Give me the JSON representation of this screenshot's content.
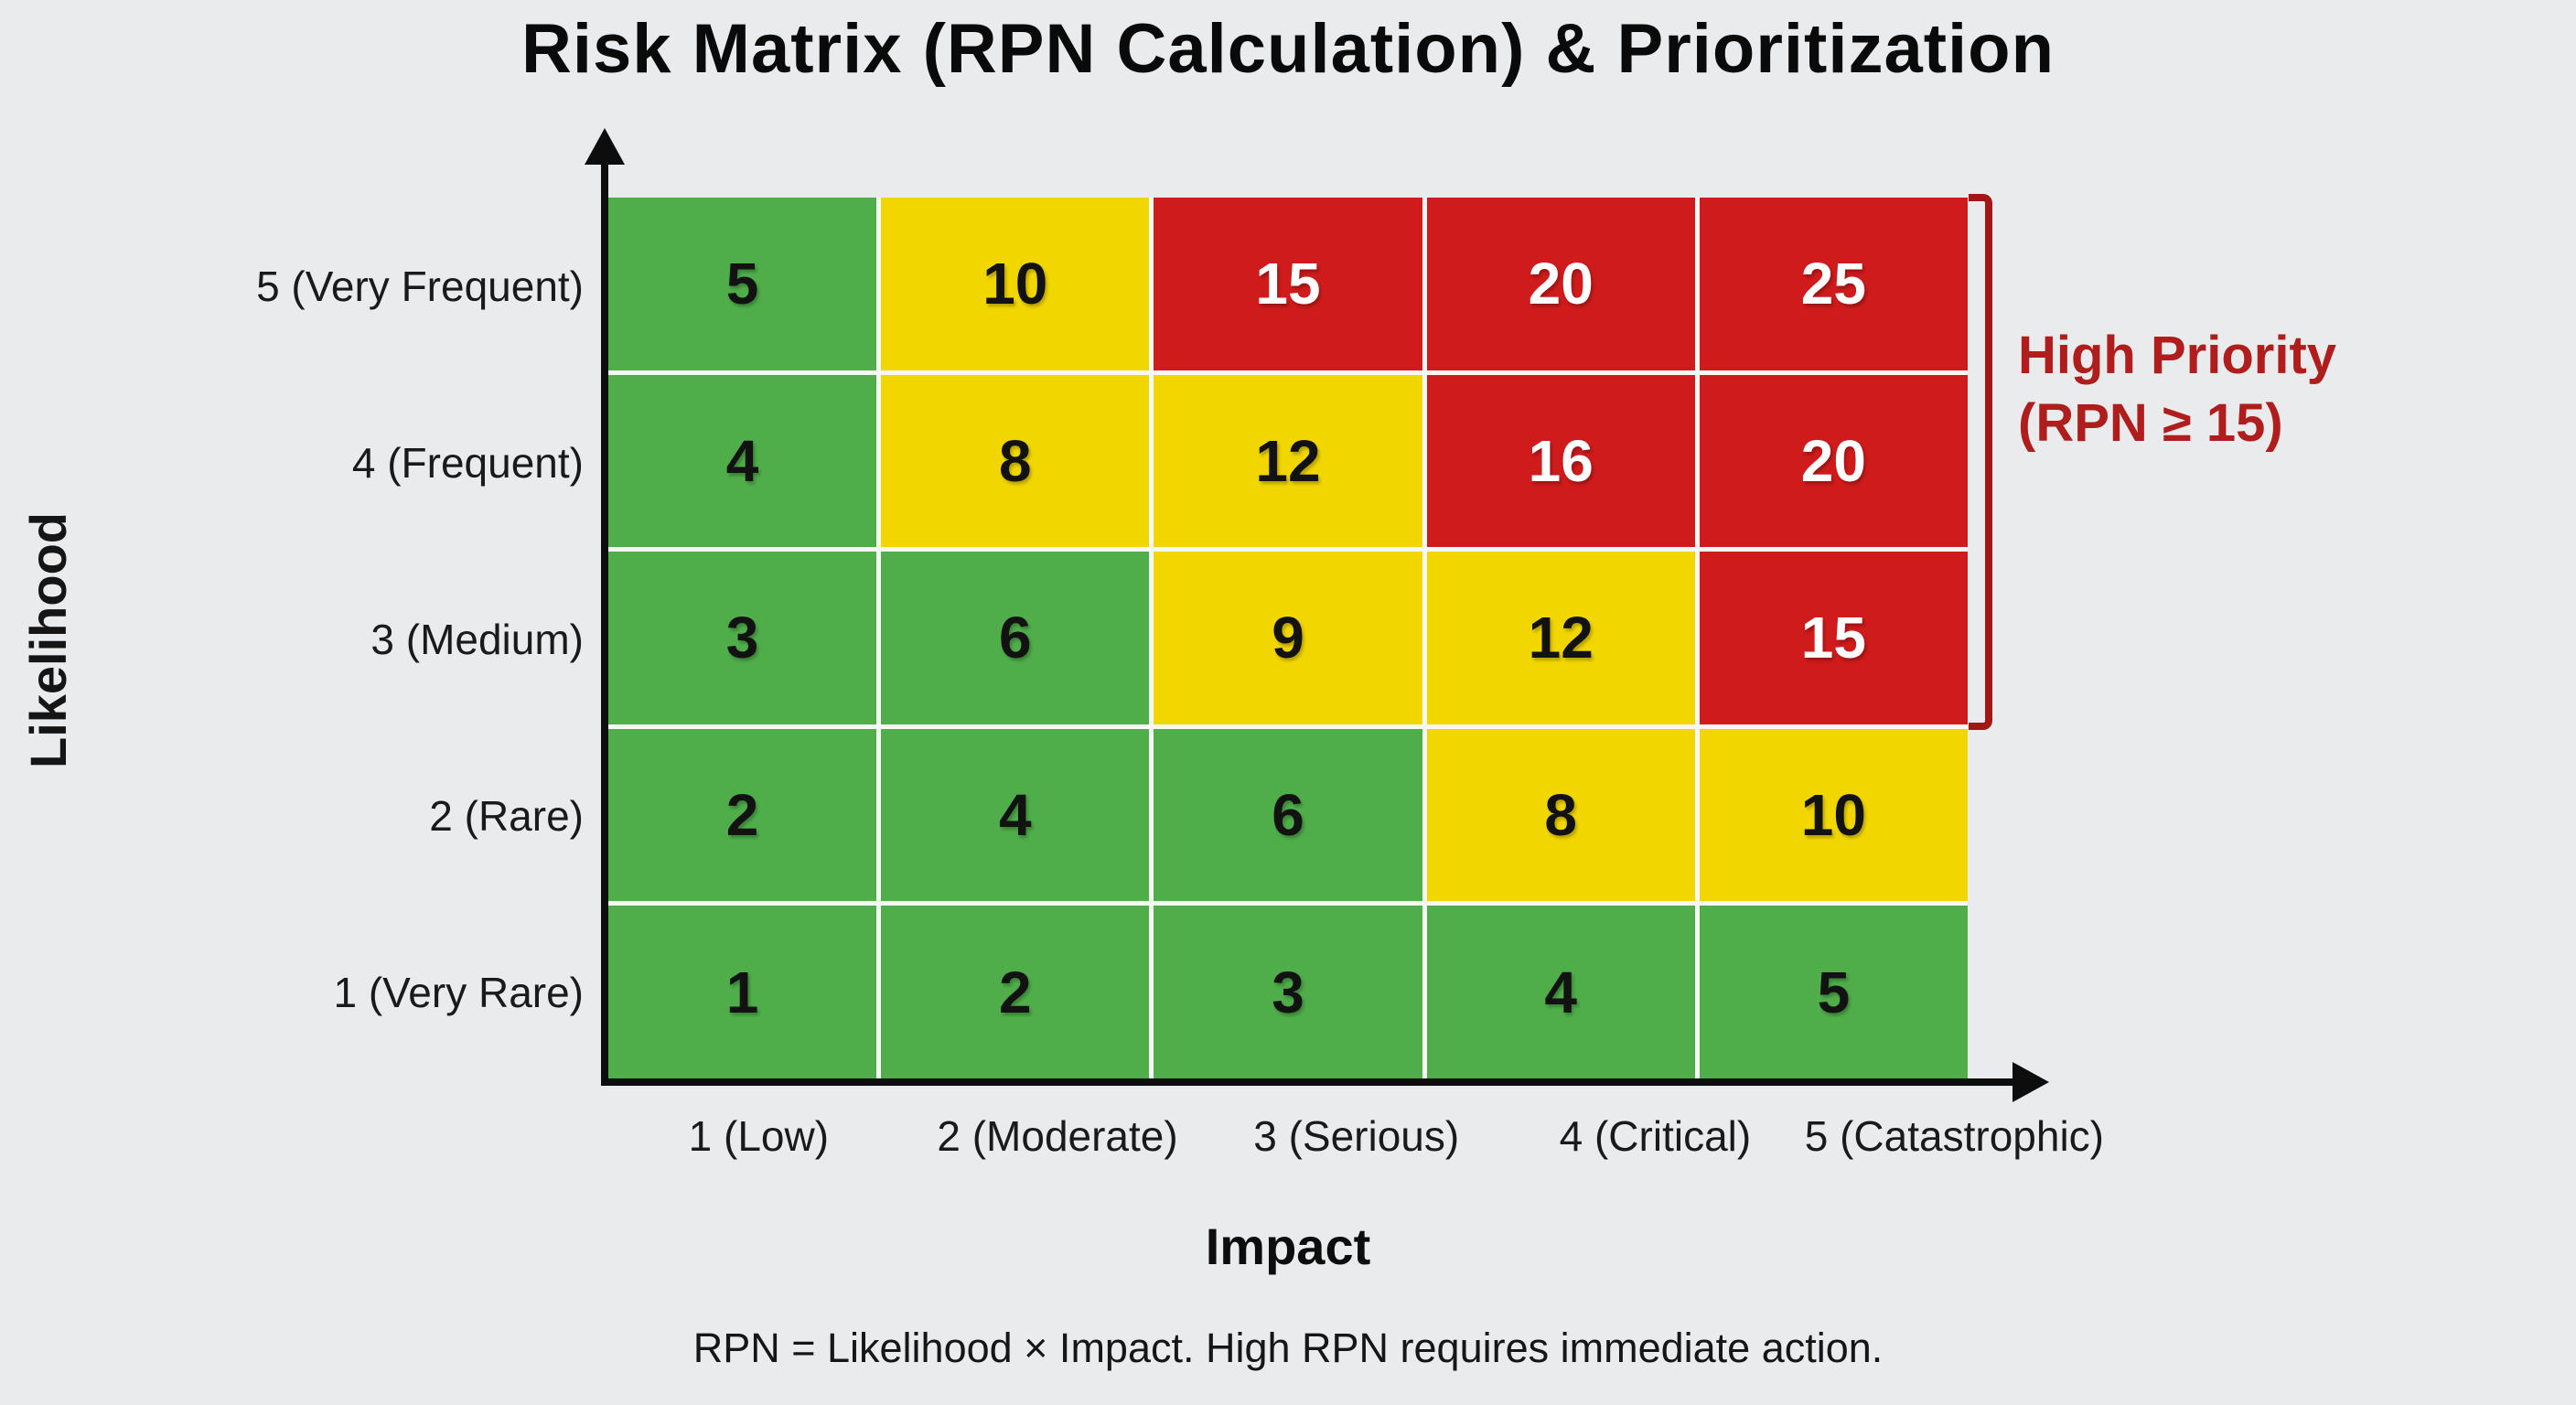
{
  "title": "Risk Matrix (RPN Calculation) & Prioritization",
  "chart_data": {
    "type": "heatmap",
    "title": "Risk Matrix (RPN Calculation) & Prioritization",
    "xlabel": "Impact",
    "ylabel": "Likelihood",
    "x_categories": [
      "1 (Low)",
      "2 (Moderate)",
      "3 (Serious)",
      "4 (Critical)",
      "5 (Catastrophic)"
    ],
    "y_categories": [
      "5 (Very Frequent)",
      "4 (Frequent)",
      "3 (Medium)",
      "2 (Rare)",
      "1 (Very Rare)"
    ],
    "rows": [
      {
        "likelihood": 5,
        "values": [
          5,
          10,
          15,
          20,
          25
        ],
        "levels": [
          "green",
          "yellow",
          "red",
          "red",
          "red"
        ]
      },
      {
        "likelihood": 4,
        "values": [
          4,
          8,
          12,
          16,
          20
        ],
        "levels": [
          "green",
          "yellow",
          "yellow",
          "red",
          "red"
        ]
      },
      {
        "likelihood": 3,
        "values": [
          3,
          6,
          9,
          12,
          15
        ],
        "levels": [
          "green",
          "green",
          "yellow",
          "yellow",
          "red"
        ]
      },
      {
        "likelihood": 2,
        "values": [
          2,
          4,
          6,
          8,
          10
        ],
        "levels": [
          "green",
          "green",
          "green",
          "yellow",
          "yellow"
        ]
      },
      {
        "likelihood": 1,
        "values": [
          1,
          2,
          3,
          4,
          5
        ],
        "levels": [
          "green",
          "green",
          "green",
          "green",
          "green"
        ]
      }
    ],
    "palette": {
      "green": "#4fae4a",
      "yellow": "#f2d600",
      "red": "#cf1b1b",
      "text_on_red": "#ffffff",
      "text_default": "#121212",
      "annotation_red": "#b01d1d",
      "bracket_red": "#a31717",
      "background": "#e9ebec"
    },
    "legend_position": "right",
    "grid": true,
    "annotation": {
      "line1": "High Priority",
      "line2": "(RPN ≥ 15)",
      "bracket_covers_rows": [
        5,
        4,
        3
      ]
    },
    "footnote": "RPN = Likelihood × Impact. High RPN requires immediate action."
  }
}
